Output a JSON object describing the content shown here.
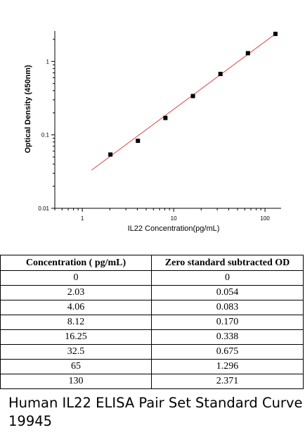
{
  "chart_data": {
    "type": "scatter",
    "xlabel": "IL22  Concentration(pg/mL)",
    "ylabel": "Optical Density (450nm)",
    "x_scale": "log",
    "y_scale": "log",
    "xlim": [
      0.5,
      150
    ],
    "ylim": [
      0.01,
      2.6
    ],
    "x_ticks": [
      1,
      10,
      100
    ],
    "x_tick_labels": [
      "1",
      "10",
      "100"
    ],
    "y_ticks": [
      0.01,
      0.1,
      1
    ],
    "y_tick_labels": [
      "0.01",
      "0.1",
      "1"
    ],
    "grid": false,
    "points": {
      "x": [
        2.03,
        4.06,
        8.12,
        16.25,
        32.5,
        65,
        130
      ],
      "y": [
        0.054,
        0.083,
        0.17,
        0.338,
        0.675,
        1.296,
        2.371
      ]
    },
    "fit_line": {
      "x": [
        1.26,
        130
      ],
      "y": [
        0.033,
        2.371
      ],
      "color": "#e04040"
    },
    "marker_color": "#000000",
    "axis_color": "#000000"
  },
  "table": {
    "headers": [
      "Concentration ( pg/mL)",
      "Zero standard subtracted OD"
    ],
    "rows": [
      [
        "0",
        "0"
      ],
      [
        "2.03",
        "0.054"
      ],
      [
        "4.06",
        "0.083"
      ],
      [
        "8.12",
        "0.170"
      ],
      [
        "16.25",
        "0.338"
      ],
      [
        "32.5",
        "0.675"
      ],
      [
        "65",
        "1.296"
      ],
      [
        "130",
        "2.371"
      ]
    ]
  },
  "caption": {
    "line1": "Human IL22 ELISA Pair Set Standard Curve",
    "line2": "19945"
  }
}
